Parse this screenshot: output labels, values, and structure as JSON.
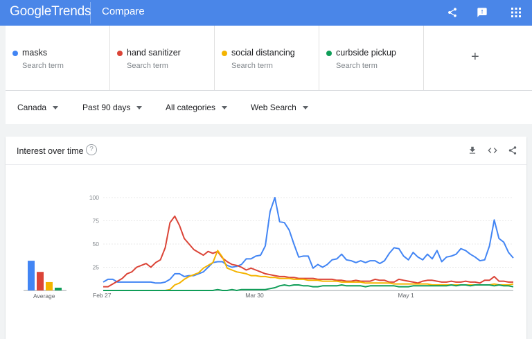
{
  "header": {
    "logo_google": "Google",
    "logo_trends": "Trends",
    "title": "Compare",
    "icons": [
      "share-icon",
      "feedback-icon",
      "apps-grid-icon"
    ]
  },
  "terms": [
    {
      "name": "masks",
      "sub": "Search term",
      "color": "#4285f4"
    },
    {
      "name": "hand sanitizer",
      "sub": "Search term",
      "color": "#db4437"
    },
    {
      "name": "social distancing",
      "sub": "Search term",
      "color": "#f4b400"
    },
    {
      "name": "curbside pickup",
      "sub": "Search term",
      "color": "#0f9d58"
    }
  ],
  "add_term": "+",
  "filters": {
    "region": "Canada",
    "period": "Past 90 days",
    "category": "All categories",
    "property": "Web Search"
  },
  "card": {
    "title": "Interest over time",
    "help": "?",
    "icons": [
      "download-icon",
      "embed-icon",
      "share-icon"
    ],
    "average_label": "Average"
  },
  "chart_data": {
    "type": "line",
    "ylim": [
      0,
      100
    ],
    "yticks": [
      25,
      50,
      75,
      100
    ],
    "xlabels": [
      "Feb 27",
      "Mar 30",
      "May 1"
    ],
    "average": [
      {
        "name": "masks",
        "value": 32
      },
      {
        "name": "hand sanitizer",
        "value": 20
      },
      {
        "name": "social distancing",
        "value": 9
      },
      {
        "name": "curbside pickup",
        "value": 3
      }
    ],
    "series": [
      {
        "name": "masks",
        "color": "#4285f4",
        "values": [
          9,
          12,
          12,
          9,
          9,
          9,
          9,
          9,
          9,
          9,
          9,
          8,
          8,
          9,
          12,
          18,
          18,
          15,
          16,
          16,
          18,
          20,
          25,
          30,
          31,
          31,
          27,
          25,
          26,
          28,
          34,
          34,
          37,
          38,
          48,
          85,
          100,
          74,
          73,
          65,
          50,
          36,
          37,
          37,
          24,
          28,
          25,
          28,
          33,
          34,
          39,
          33,
          32,
          30,
          32,
          30,
          32,
          32,
          29,
          32,
          40,
          46,
          45,
          37,
          33,
          41,
          36,
          33,
          39,
          34,
          43,
          31,
          36,
          37,
          39,
          45,
          43,
          39,
          36,
          32,
          33,
          48,
          76,
          56,
          52,
          41,
          35
        ]
      },
      {
        "name": "hand sanitizer",
        "color": "#db4437",
        "values": [
          4,
          4,
          7,
          10,
          13,
          18,
          20,
          25,
          27,
          29,
          25,
          30,
          33,
          46,
          73,
          80,
          70,
          56,
          50,
          44,
          41,
          38,
          42,
          40,
          42,
          35,
          31,
          28,
          27,
          25,
          22,
          24,
          22,
          20,
          18,
          17,
          16,
          15,
          15,
          14,
          14,
          13,
          13,
          13,
          13,
          12,
          12,
          12,
          12,
          11,
          11,
          10,
          10,
          11,
          10,
          10,
          10,
          12,
          11,
          11,
          9,
          9,
          12,
          11,
          10,
          9,
          8,
          10,
          11,
          11,
          10,
          9,
          9,
          10,
          9,
          9,
          10,
          9,
          9,
          8,
          11,
          11,
          15,
          10,
          10,
          9,
          9
        ]
      },
      {
        "name": "social distancing",
        "color": "#f4b400",
        "values": [
          0,
          0,
          0,
          0,
          0,
          0,
          0,
          0,
          0,
          0,
          0,
          0,
          0,
          0,
          1,
          6,
          8,
          12,
          15,
          17,
          19,
          24,
          27,
          30,
          43,
          36,
          24,
          22,
          20,
          19,
          18,
          16,
          16,
          15,
          15,
          14,
          14,
          13,
          13,
          13,
          12,
          12,
          12,
          11,
          11,
          11,
          10,
          10,
          10,
          10,
          9,
          9,
          9,
          9,
          9,
          8,
          8,
          8,
          8,
          8,
          8,
          7,
          7,
          7,
          7,
          7,
          7,
          7,
          7,
          6,
          6,
          6,
          6,
          6,
          6,
          6,
          6,
          6,
          6,
          6,
          6,
          6,
          7,
          6,
          6,
          6,
          7
        ]
      },
      {
        "name": "curbside pickup",
        "color": "#0f9d58",
        "values": [
          0,
          0,
          0,
          0,
          0,
          0,
          0,
          0,
          0,
          0,
          0,
          0,
          0,
          0,
          0,
          0,
          0,
          0,
          0,
          0,
          0,
          0,
          0,
          0,
          1,
          0,
          0,
          1,
          0,
          1,
          1,
          1,
          1,
          1,
          1,
          2,
          3,
          5,
          6,
          5,
          6,
          6,
          5,
          5,
          4,
          4,
          5,
          5,
          5,
          5,
          6,
          5,
          5,
          5,
          5,
          4,
          5,
          5,
          5,
          5,
          5,
          5,
          4,
          4,
          4,
          5,
          5,
          5,
          5,
          5,
          5,
          5,
          5,
          6,
          5,
          6,
          6,
          5,
          6,
          6,
          6,
          6,
          5,
          6,
          5,
          5,
          4
        ]
      }
    ]
  }
}
